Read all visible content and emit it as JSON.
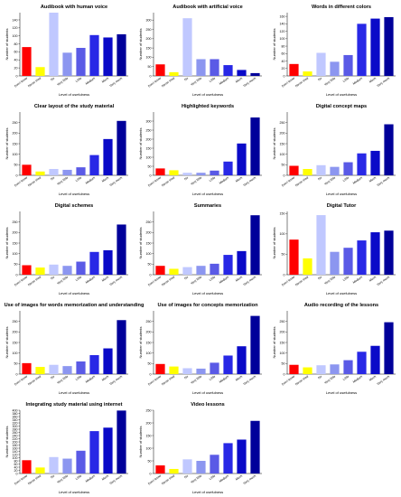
{
  "chart_data": [
    {
      "type": "bar",
      "title": "Audibook with human voice",
      "xlabel": "Level of usefulness",
      "ylabel": "Number of students",
      "categories": [
        "Don't know",
        "Never tried",
        "No",
        "Very little",
        "Little",
        "Medium",
        "Much",
        "Very much"
      ],
      "values": [
        72,
        22,
        158,
        58,
        70,
        102,
        96,
        104
      ],
      "yticks": [
        0,
        20,
        40,
        60,
        80,
        100,
        120,
        140
      ],
      "ylim": [
        0,
        158
      ]
    },
    {
      "type": "bar",
      "title": "Audibook with artificial voice",
      "xlabel": "Level of usefulness",
      "ylabel": "Number of students",
      "categories": [
        "Don't know",
        "Never tried",
        "No",
        "Very little",
        "Little",
        "Medium",
        "Much",
        "Very much"
      ],
      "values": [
        62,
        20,
        310,
        90,
        90,
        58,
        32,
        15
      ],
      "yticks": [
        0,
        50,
        100,
        150,
        200,
        250,
        300
      ],
      "ylim": [
        0,
        340
      ]
    },
    {
      "type": "bar",
      "title": "Words in different colors",
      "xlabel": "Level of usefulness",
      "ylabel": "Number of students",
      "categories": [
        "Don't know",
        "Never tried",
        "No",
        "Very little",
        "Little",
        "Medium",
        "Much",
        "Very much"
      ],
      "values": [
        32,
        12,
        62,
        38,
        56,
        140,
        154,
        158
      ],
      "yticks": [
        0,
        20,
        40,
        60,
        80,
        100,
        120,
        140,
        160
      ],
      "ylim": [
        0,
        170
      ]
    },
    {
      "type": "bar",
      "title": "Clear layout of the study material",
      "xlabel": "Level of usefulness",
      "ylabel": "Number of students",
      "categories": [
        "Don't know",
        "Never tried",
        "No",
        "Very little",
        "Little",
        "Medium",
        "Much",
        "Very much"
      ],
      "values": [
        50,
        18,
        30,
        26,
        38,
        96,
        172,
        258
      ],
      "yticks": [
        0,
        50,
        100,
        150,
        200,
        250
      ],
      "ylim": [
        0,
        300
      ]
    },
    {
      "type": "bar",
      "title": "Highlighted keywords",
      "xlabel": "Level of usefulness",
      "ylabel": "Number of students",
      "categories": [
        "Don't know",
        "Never tried",
        "No",
        "Very little",
        "Little",
        "Medium",
        "Much",
        "Very much"
      ],
      "values": [
        38,
        28,
        14,
        14,
        26,
        76,
        176,
        320
      ],
      "yticks": [
        0,
        50,
        100,
        150,
        200,
        250,
        300
      ],
      "ylim": [
        0,
        350
      ]
    },
    {
      "type": "bar",
      "title": "Digital concept maps",
      "xlabel": "Level of usefulness",
      "ylabel": "Number of students",
      "categories": [
        "Don't know",
        "Never tried",
        "No",
        "Very little",
        "Little",
        "Medium",
        "Much",
        "Very much"
      ],
      "values": [
        45,
        30,
        48,
        40,
        62,
        104,
        116,
        242
      ],
      "yticks": [
        0,
        50,
        100,
        150,
        200,
        250
      ],
      "ylim": [
        0,
        300
      ]
    },
    {
      "type": "bar",
      "title": "Digital schemes",
      "xlabel": "Level of usefulness",
      "ylabel": "Number of students",
      "categories": [
        "Don't know",
        "Never tried",
        "No",
        "Very little",
        "Little",
        "Medium",
        "Much",
        "Very much"
      ],
      "values": [
        45,
        34,
        48,
        42,
        62,
        108,
        116,
        238
      ],
      "yticks": [
        0,
        50,
        100,
        150,
        200,
        250
      ],
      "ylim": [
        0,
        300
      ]
    },
    {
      "type": "bar",
      "title": "Summaries",
      "xlabel": "Level of usefulness",
      "ylabel": "Number of students",
      "categories": [
        "Don't know",
        "Never tried",
        "No",
        "Very little",
        "Little",
        "Medium",
        "Much",
        "Very much"
      ],
      "values": [
        42,
        28,
        36,
        42,
        52,
        94,
        112,
        282
      ],
      "yticks": [
        0,
        50,
        100,
        150,
        200,
        250
      ],
      "ylim": [
        0,
        300
      ]
    },
    {
      "type": "bar",
      "title": "Digital Tutor",
      "xlabel": "Level of usefulness",
      "ylabel": "Number of students",
      "categories": [
        "Don't know",
        "Never tried",
        "No",
        "Very little",
        "Little",
        "Medium",
        "Much",
        "Very much"
      ],
      "values": [
        86,
        40,
        146,
        56,
        66,
        84,
        104,
        108
      ],
      "yticks": [
        0,
        50,
        100,
        150
      ],
      "ylim": [
        0,
        155
      ]
    },
    {
      "type": "bar",
      "title": "Use of images for words memorization and understanding",
      "xlabel": "Level of usefulness",
      "ylabel": "Number of students",
      "categories": [
        "Don't know",
        "Never tried",
        "No",
        "Very little",
        "Little",
        "Medium",
        "Much",
        "Very much"
      ],
      "values": [
        52,
        34,
        44,
        38,
        60,
        90,
        122,
        256
      ],
      "yticks": [
        0,
        50,
        100,
        150,
        200,
        250
      ],
      "ylim": [
        0,
        300
      ]
    },
    {
      "type": "bar",
      "title": "Use of images for concepts memorization",
      "xlabel": "Level of usefulness",
      "ylabel": "Number of students",
      "categories": [
        "Don't know",
        "Never tried",
        "No",
        "Very little",
        "Little",
        "Medium",
        "Much",
        "Very much"
      ],
      "values": [
        48,
        36,
        28,
        26,
        54,
        88,
        132,
        276
      ],
      "yticks": [
        0,
        50,
        100,
        150,
        200,
        250
      ],
      "ylim": [
        0,
        300
      ]
    },
    {
      "type": "bar",
      "title": "Audio recording of the lessons",
      "xlabel": "Level of usefulness",
      "ylabel": "Number of students",
      "categories": [
        "Don't know",
        "Never tried",
        "No",
        "Very little",
        "Little",
        "Medium",
        "Much",
        "Very much"
      ],
      "values": [
        44,
        32,
        42,
        46,
        66,
        106,
        134,
        246
      ],
      "yticks": [
        0,
        50,
        100,
        150,
        200,
        250
      ],
      "ylim": [
        0,
        300
      ]
    },
    {
      "type": "bar",
      "title": "Integrating study material using internet",
      "xlabel": "Level of usefulness",
      "ylabel": "Number of students",
      "categories": [
        "Don't know",
        "Never tried",
        "No",
        "Very little",
        "Little",
        "Medium",
        "Much",
        "Very much"
      ],
      "values": [
        84,
        38,
        104,
        94,
        144,
        268,
        290,
        398
      ],
      "yticks": [
        0,
        20,
        40,
        60,
        80,
        100,
        120,
        140,
        160,
        180,
        200,
        220,
        240,
        260,
        280,
        300,
        320,
        340,
        360,
        380,
        400
      ],
      "ylim": [
        0,
        400
      ]
    },
    {
      "type": "bar",
      "title": "Video lessons",
      "xlabel": "Level of usefulness",
      "ylabel": "Number of students",
      "categories": [
        "Don't know",
        "Never tried",
        "No",
        "Very little",
        "Little",
        "Medium",
        "Much",
        "Very much"
      ],
      "values": [
        32,
        18,
        56,
        50,
        74,
        120,
        134,
        208
      ],
      "yticks": [
        0,
        50,
        100,
        150,
        200,
        250
      ],
      "ylim": [
        0,
        250
      ]
    }
  ],
  "colors": [
    "#ff0000",
    "#ffff00",
    "#c0c8ff",
    "#8c96f0",
    "#5a5ae6",
    "#2828e6",
    "#0a0ac8",
    "#00009a"
  ]
}
